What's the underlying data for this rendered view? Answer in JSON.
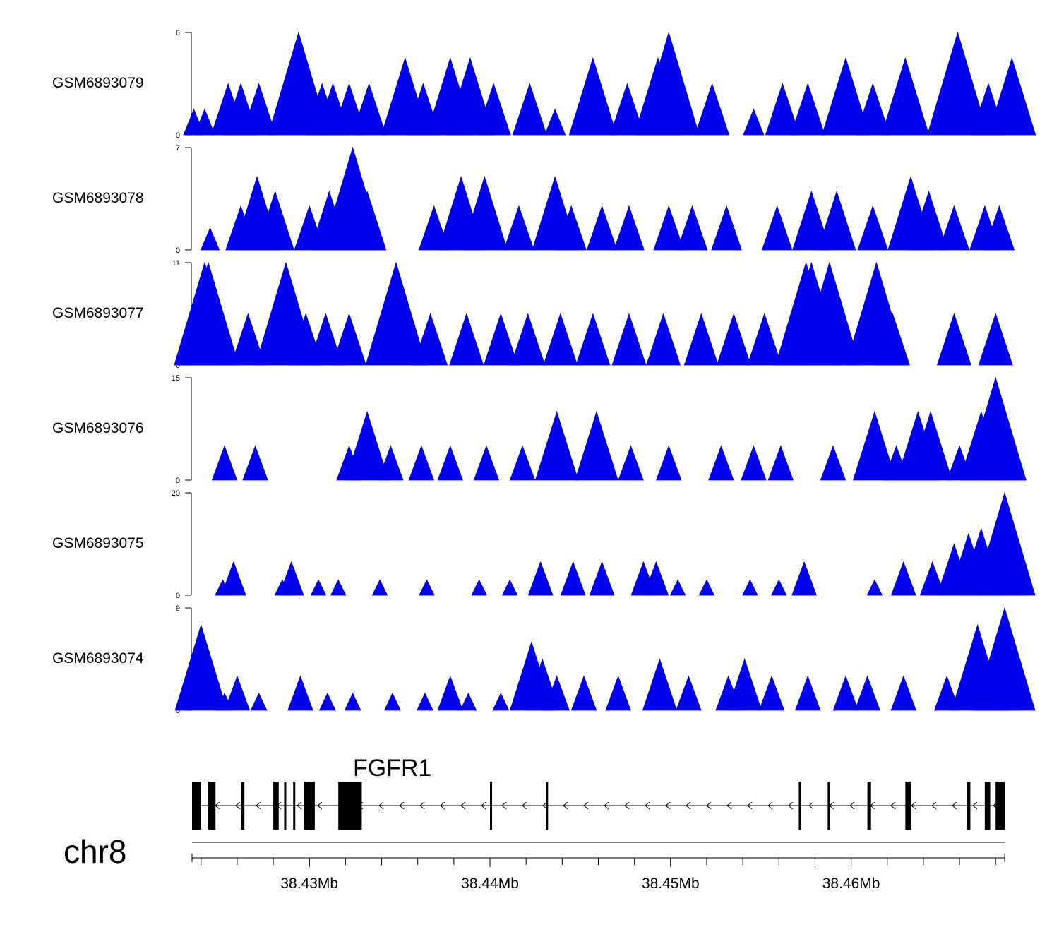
{
  "chart_data": {
    "type": "area",
    "chromosome": "chr8",
    "x_range_mb": [
      38.4235,
      38.4685
    ],
    "x_ticks": [
      {
        "value": 38.43,
        "label": "38.43Mb"
      },
      {
        "value": 38.44,
        "label": "38.44Mb"
      },
      {
        "value": 38.45,
        "label": "38.45Mb"
      },
      {
        "value": 38.46,
        "label": "38.46Mb"
      }
    ],
    "fill_color": "#0000ee",
    "tracks": [
      {
        "name": "GSM6893079",
        "ymax": 6,
        "ymin_label": "0",
        "ymax_label": "6",
        "peaks": [
          [
            38.4236,
            1.5
          ],
          [
            38.4242,
            1.5
          ],
          [
            38.4255,
            3
          ],
          [
            38.4262,
            3
          ],
          [
            38.4272,
            3
          ],
          [
            38.4294,
            6
          ],
          [
            38.4307,
            3
          ],
          [
            38.4313,
            3
          ],
          [
            38.4322,
            3
          ],
          [
            38.4333,
            3
          ],
          [
            38.4353,
            4.5
          ],
          [
            38.4363,
            3
          ],
          [
            38.4378,
            4.5
          ],
          [
            38.4389,
            4.5
          ],
          [
            38.4402,
            3
          ],
          [
            38.4422,
            3
          ],
          [
            38.4436,
            1.5
          ],
          [
            38.4457,
            4.5
          ],
          [
            38.4476,
            3
          ],
          [
            38.4493,
            4.5
          ],
          [
            38.4499,
            6
          ],
          [
            38.4523,
            3
          ],
          [
            38.4546,
            1.5
          ],
          [
            38.4562,
            3
          ],
          [
            38.4576,
            3
          ],
          [
            38.4597,
            4.5
          ],
          [
            38.4612,
            3
          ],
          [
            38.463,
            4.5
          ],
          [
            38.4659,
            6
          ],
          [
            38.4676,
            3
          ],
          [
            38.4689,
            4.5
          ]
        ]
      },
      {
        "name": "GSM6893078",
        "ymax": 7,
        "ymin_label": "0",
        "ymax_label": "7",
        "peaks": [
          [
            38.4245,
            1.5
          ],
          [
            38.4262,
            3
          ],
          [
            38.4271,
            5
          ],
          [
            38.4281,
            4
          ],
          [
            38.43,
            3
          ],
          [
            38.4311,
            4
          ],
          [
            38.4324,
            7
          ],
          [
            38.4332,
            4
          ],
          [
            38.4369,
            3
          ],
          [
            38.4384,
            5
          ],
          [
            38.4397,
            5
          ],
          [
            38.4416,
            3
          ],
          [
            38.4436,
            5
          ],
          [
            38.4445,
            3
          ],
          [
            38.4462,
            3
          ],
          [
            38.4477,
            3
          ],
          [
            38.4499,
            3
          ],
          [
            38.4512,
            3
          ],
          [
            38.4531,
            3
          ],
          [
            38.4559,
            3
          ],
          [
            38.4578,
            4
          ],
          [
            38.4592,
            4
          ],
          [
            38.4612,
            3
          ],
          [
            38.4633,
            5
          ],
          [
            38.4643,
            4
          ],
          [
            38.4657,
            3
          ],
          [
            38.4674,
            3
          ],
          [
            38.4682,
            3
          ]
        ]
      },
      {
        "name": "GSM6893077",
        "ymax": 11,
        "ymin_label": "0",
        "ymax_label": "11",
        "peaks": [
          [
            38.4237,
            5.5
          ],
          [
            38.4242,
            11
          ],
          [
            38.4244,
            11
          ],
          [
            38.4266,
            5.5
          ],
          [
            38.4287,
            11
          ],
          [
            38.4298,
            5.5
          ],
          [
            38.4309,
            5.5
          ],
          [
            38.4322,
            5.5
          ],
          [
            38.4348,
            11
          ],
          [
            38.4367,
            5.5
          ],
          [
            38.4387,
            5.5
          ],
          [
            38.4406,
            5.5
          ],
          [
            38.4421,
            5.5
          ],
          [
            38.4439,
            5.5
          ],
          [
            38.4457,
            5.5
          ],
          [
            38.4477,
            5.5
          ],
          [
            38.4496,
            5.5
          ],
          [
            38.4517,
            5.5
          ],
          [
            38.4535,
            5.5
          ],
          [
            38.4552,
            5.5
          ],
          [
            38.4575,
            11
          ],
          [
            38.4578,
            11
          ],
          [
            38.4588,
            11
          ],
          [
            38.4614,
            11
          ],
          [
            38.4623,
            5.5
          ],
          [
            38.4657,
            5.5
          ],
          [
            38.468,
            5.5
          ]
        ]
      },
      {
        "name": "GSM6893076",
        "ymax": 15,
        "ymin_label": "0",
        "ymax_label": "15",
        "peaks": [
          [
            38.4253,
            5
          ],
          [
            38.427,
            5
          ],
          [
            38.4322,
            5
          ],
          [
            38.4332,
            10
          ],
          [
            38.4345,
            5
          ],
          [
            38.4362,
            5
          ],
          [
            38.4378,
            5
          ],
          [
            38.4398,
            5
          ],
          [
            38.4418,
            5
          ],
          [
            38.4437,
            10
          ],
          [
            38.4459,
            10
          ],
          [
            38.4478,
            5
          ],
          [
            38.4499,
            5
          ],
          [
            38.4528,
            5
          ],
          [
            38.4546,
            5
          ],
          [
            38.4561,
            5
          ],
          [
            38.459,
            5
          ],
          [
            38.4613,
            10
          ],
          [
            38.4625,
            5
          ],
          [
            38.4637,
            10
          ],
          [
            38.4644,
            10
          ],
          [
            38.466,
            5
          ],
          [
            38.4672,
            10
          ],
          [
            38.468,
            15
          ],
          [
            38.4685,
            10
          ]
        ]
      },
      {
        "name": "GSM6893075",
        "ymax": 20,
        "ymin_label": "0",
        "ymax_label": "20",
        "peaks": [
          [
            38.4252,
            3
          ],
          [
            38.4258,
            6.5
          ],
          [
            38.4285,
            3
          ],
          [
            38.429,
            6.5
          ],
          [
            38.4305,
            3
          ],
          [
            38.4316,
            3
          ],
          [
            38.4339,
            3
          ],
          [
            38.4365,
            3
          ],
          [
            38.4394,
            3
          ],
          [
            38.4411,
            3
          ],
          [
            38.4428,
            6.5
          ],
          [
            38.4446,
            6.5
          ],
          [
            38.4462,
            6.5
          ],
          [
            38.4485,
            6.5
          ],
          [
            38.4492,
            6.5
          ],
          [
            38.4504,
            3
          ],
          [
            38.452,
            3
          ],
          [
            38.4544,
            3
          ],
          [
            38.456,
            3
          ],
          [
            38.4574,
            6.5
          ],
          [
            38.4613,
            3
          ],
          [
            38.4629,
            6.5
          ],
          [
            38.4645,
            6.5
          ],
          [
            38.4657,
            10
          ],
          [
            38.4665,
            12
          ],
          [
            38.4672,
            13
          ],
          [
            38.4677,
            10
          ],
          [
            38.4682,
            16
          ],
          [
            38.4685,
            20
          ]
        ]
      },
      {
        "name": "GSM6893074",
        "ymax": 9,
        "ymin_label": "0",
        "ymax_label": "9",
        "peaks": [
          [
            38.424,
            7.5
          ],
          [
            38.4253,
            1.5
          ],
          [
            38.426,
            3
          ],
          [
            38.4272,
            1.5
          ],
          [
            38.4295,
            3
          ],
          [
            38.431,
            1.5
          ],
          [
            38.4324,
            1.5
          ],
          [
            38.4346,
            1.5
          ],
          [
            38.4364,
            1.5
          ],
          [
            38.4378,
            3
          ],
          [
            38.4388,
            1.5
          ],
          [
            38.4406,
            1.5
          ],
          [
            38.4423,
            6
          ],
          [
            38.4429,
            4.5
          ],
          [
            38.4437,
            3
          ],
          [
            38.4452,
            3
          ],
          [
            38.4471,
            3
          ],
          [
            38.4494,
            4.5
          ],
          [
            38.451,
            3
          ],
          [
            38.4532,
            3
          ],
          [
            38.4541,
            4.5
          ],
          [
            38.4556,
            3
          ],
          [
            38.4576,
            3
          ],
          [
            38.4597,
            3
          ],
          [
            38.4609,
            3
          ],
          [
            38.4629,
            3
          ],
          [
            38.4653,
            3
          ],
          [
            38.467,
            7.5
          ],
          [
            38.4678,
            4.5
          ],
          [
            38.4683,
            6
          ],
          [
            38.4685,
            9
          ]
        ]
      }
    ],
    "gene_track": {
      "gene_name": "FGFR1",
      "strand": "-",
      "exons_mb": [
        [
          38.4235,
          38.424
        ],
        [
          38.4244,
          38.4248
        ],
        [
          38.4262,
          38.4264
        ],
        [
          38.428,
          38.4283
        ],
        [
          38.4286,
          38.4287
        ],
        [
          38.4291,
          38.4292
        ],
        [
          38.4297,
          38.4303
        ],
        [
          38.4316,
          38.4329
        ],
        [
          38.44,
          38.4401
        ],
        [
          38.4431,
          38.4432
        ],
        [
          38.4571,
          38.4572
        ],
        [
          38.4587,
          38.4588
        ],
        [
          38.4609,
          38.4611
        ],
        [
          38.463,
          38.4633
        ],
        [
          38.4664,
          38.4666
        ],
        [
          38.4674,
          38.4677
        ],
        [
          38.468,
          38.4685
        ]
      ]
    }
  }
}
